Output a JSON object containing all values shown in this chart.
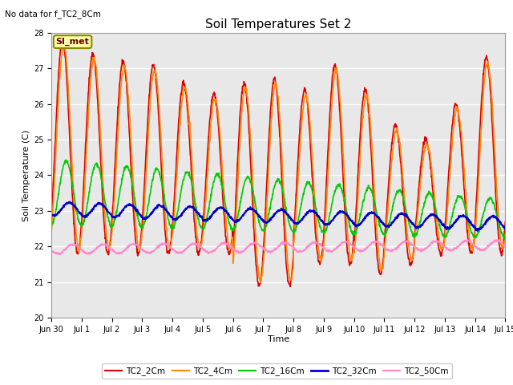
{
  "title": "Soil Temperatures Set 2",
  "no_data_text": "No data for f_TC2_8Cm",
  "ylabel": "Soil Temperature (C)",
  "xlabel": "Time",
  "ylim": [
    20.0,
    28.0
  ],
  "yticks": [
    20.0,
    21.0,
    22.0,
    23.0,
    24.0,
    25.0,
    26.0,
    27.0,
    28.0
  ],
  "bg_color": "#e8e8e8",
  "fig_color": "#ffffff",
  "grid_color": "#ffffff",
  "legend_box_label": "SI_met",
  "legend_box_color": "#ffffaa",
  "legend_box_edge": "#888800",
  "lines": [
    {
      "label": "TC2_2Cm",
      "color": "#dd0000",
      "lw": 1.2
    },
    {
      "label": "TC2_4Cm",
      "color": "#ff8800",
      "lw": 1.2
    },
    {
      "label": "TC2_16Cm",
      "color": "#00cc00",
      "lw": 1.2
    },
    {
      "label": "TC2_32Cm",
      "color": "#0000cc",
      "lw": 1.5
    },
    {
      "label": "TC2_50Cm",
      "color": "#ff88cc",
      "lw": 1.2
    }
  ],
  "xtick_labels": [
    "Jun 30",
    "Jul 1",
    "Jul 2",
    "Jul 3",
    "Jul 4",
    "Jul 5",
    "Jul 6",
    "Jul 7",
    "Jul 8",
    "Jul 9",
    "Jul 10",
    "Jul 11",
    "Jul 12",
    "Jul 13",
    "Jul 14",
    "Jul 15"
  ],
  "title_fontsize": 11,
  "label_fontsize": 8,
  "tick_fontsize": 7,
  "nodata_fontsize": 7.5,
  "legend_fontsize": 7.5
}
